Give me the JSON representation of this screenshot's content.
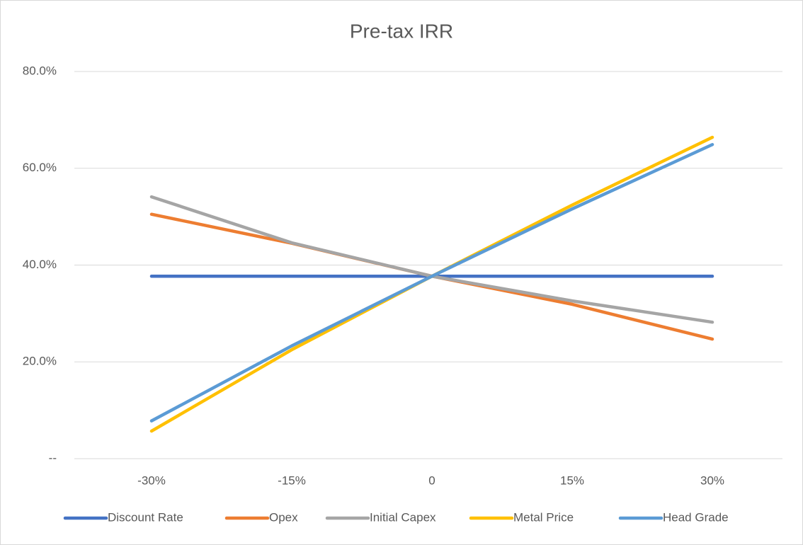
{
  "chart_data": {
    "type": "line",
    "title": "Pre-tax IRR",
    "categories": [
      "-30%",
      "-15%",
      "0",
      "15%",
      "30%"
    ],
    "series": [
      {
        "name": "Discount Rate",
        "color": "#4472c4",
        "values": [
          37.7,
          37.7,
          37.7,
          37.7,
          37.7
        ]
      },
      {
        "name": "Opex",
        "color": "#ed7d31",
        "values": [
          50.5,
          44.5,
          37.7,
          31.9,
          24.7
        ]
      },
      {
        "name": "Initial Capex",
        "color": "#a5a5a5",
        "values": [
          54.1,
          44.6,
          37.7,
          32.6,
          28.2
        ]
      },
      {
        "name": "Metal Price",
        "color": "#ffc000",
        "values": [
          5.7,
          22.5,
          37.7,
          52.4,
          66.4
        ]
      },
      {
        "name": "Head Grade",
        "color": "#5b9bd5",
        "values": [
          7.8,
          23.3,
          37.7,
          51.6,
          64.9
        ]
      }
    ],
    "ylim": [
      0,
      80
    ],
    "yticks": [
      {
        "value": 0,
        "label": "--"
      },
      {
        "value": 20,
        "label": "20.0%"
      },
      {
        "value": 40,
        "label": "40.0%"
      },
      {
        "value": 60,
        "label": "60.0%"
      },
      {
        "value": 80,
        "label": "80.0%"
      }
    ],
    "grid": true,
    "legend": "bottom"
  }
}
